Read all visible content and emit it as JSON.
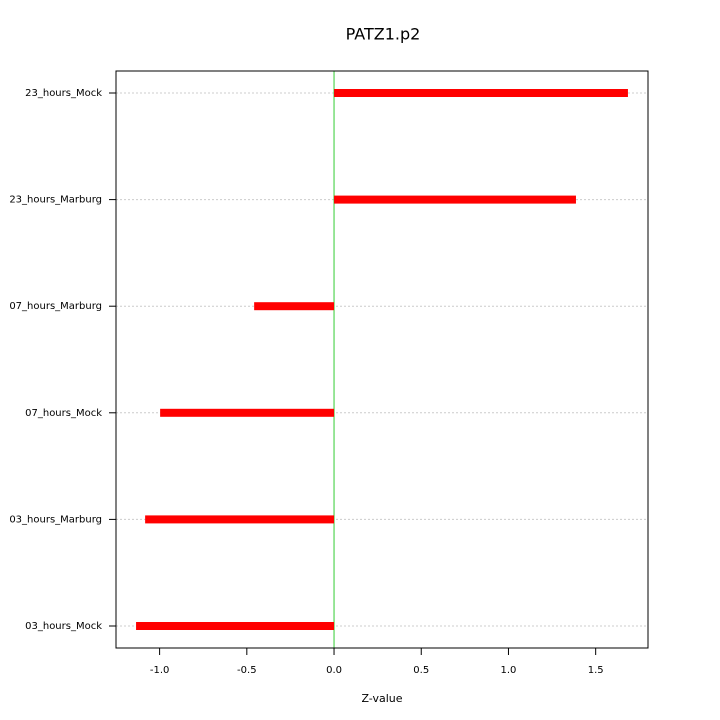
{
  "chart_data": {
    "type": "bar",
    "orientation": "horizontal",
    "title": "PATZ1.p2",
    "xlabel": "Z-value",
    "categories": [
      "23_hours_Mock",
      "23_hours_Marburg",
      "07_hours_Marburg",
      "07_hours_Mock",
      "03_hours_Marburg",
      "03_hours_Mock"
    ],
    "values": [
      1.685,
      1.387,
      -0.458,
      -0.997,
      -1.083,
      -1.135
    ],
    "color": "#ff0000",
    "xlim": [
      -1.25,
      1.8
    ],
    "xticks": [
      {
        "value": -1,
        "label": "-1.0"
      },
      -0.5,
      {
        "value": 0,
        "label": "0.0"
      },
      0.5,
      {
        "value": 1,
        "label": "1.0"
      },
      1.5
    ],
    "grid": true
  }
}
